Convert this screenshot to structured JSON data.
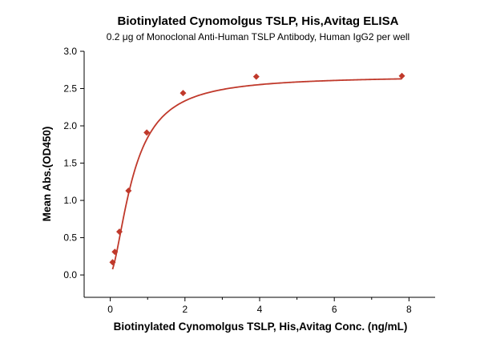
{
  "chart_data": {
    "type": "scatter",
    "title": "Biotinylated Cynomolgus TSLP, His,Avitag ELISA",
    "subtitle": "0.2 μg of Monoclonal Anti-Human TSLP Antibody, Human IgG2 per well",
    "xlabel": "Biotinylated Cynomolgus TSLP, His,Avitag Conc. (ng/mL)",
    "ylabel": "Mean Abs.(OD450)",
    "xlim": [
      -0.7,
      8.7
    ],
    "ylim": [
      -0.3,
      3.0
    ],
    "xticks": [
      0,
      2,
      4,
      6,
      8
    ],
    "yticks": [
      0.0,
      0.5,
      1.0,
      1.5,
      2.0,
      2.5,
      3.0
    ],
    "xtick_labels": [
      "0",
      "2",
      "4",
      "6",
      "8"
    ],
    "ytick_labels": [
      "0.0",
      "0.5",
      "1.0",
      "1.5",
      "2.0",
      "2.5",
      "3.0"
    ],
    "grid": false,
    "marker_color": "#c0392b",
    "curve_color": "#c0392b",
    "series": [
      {
        "x": [
          0.061,
          0.122,
          0.244,
          0.488,
          0.977,
          1.95,
          3.91,
          7.81
        ],
        "y": [
          0.17,
          0.31,
          0.58,
          1.13,
          1.91,
          2.44,
          2.66,
          2.67
        ]
      }
    ],
    "fit_curve": {
      "model": "4PL",
      "bottom": 0.02,
      "top": 2.67,
      "ec50": 0.62,
      "hill": 1.65
    }
  }
}
